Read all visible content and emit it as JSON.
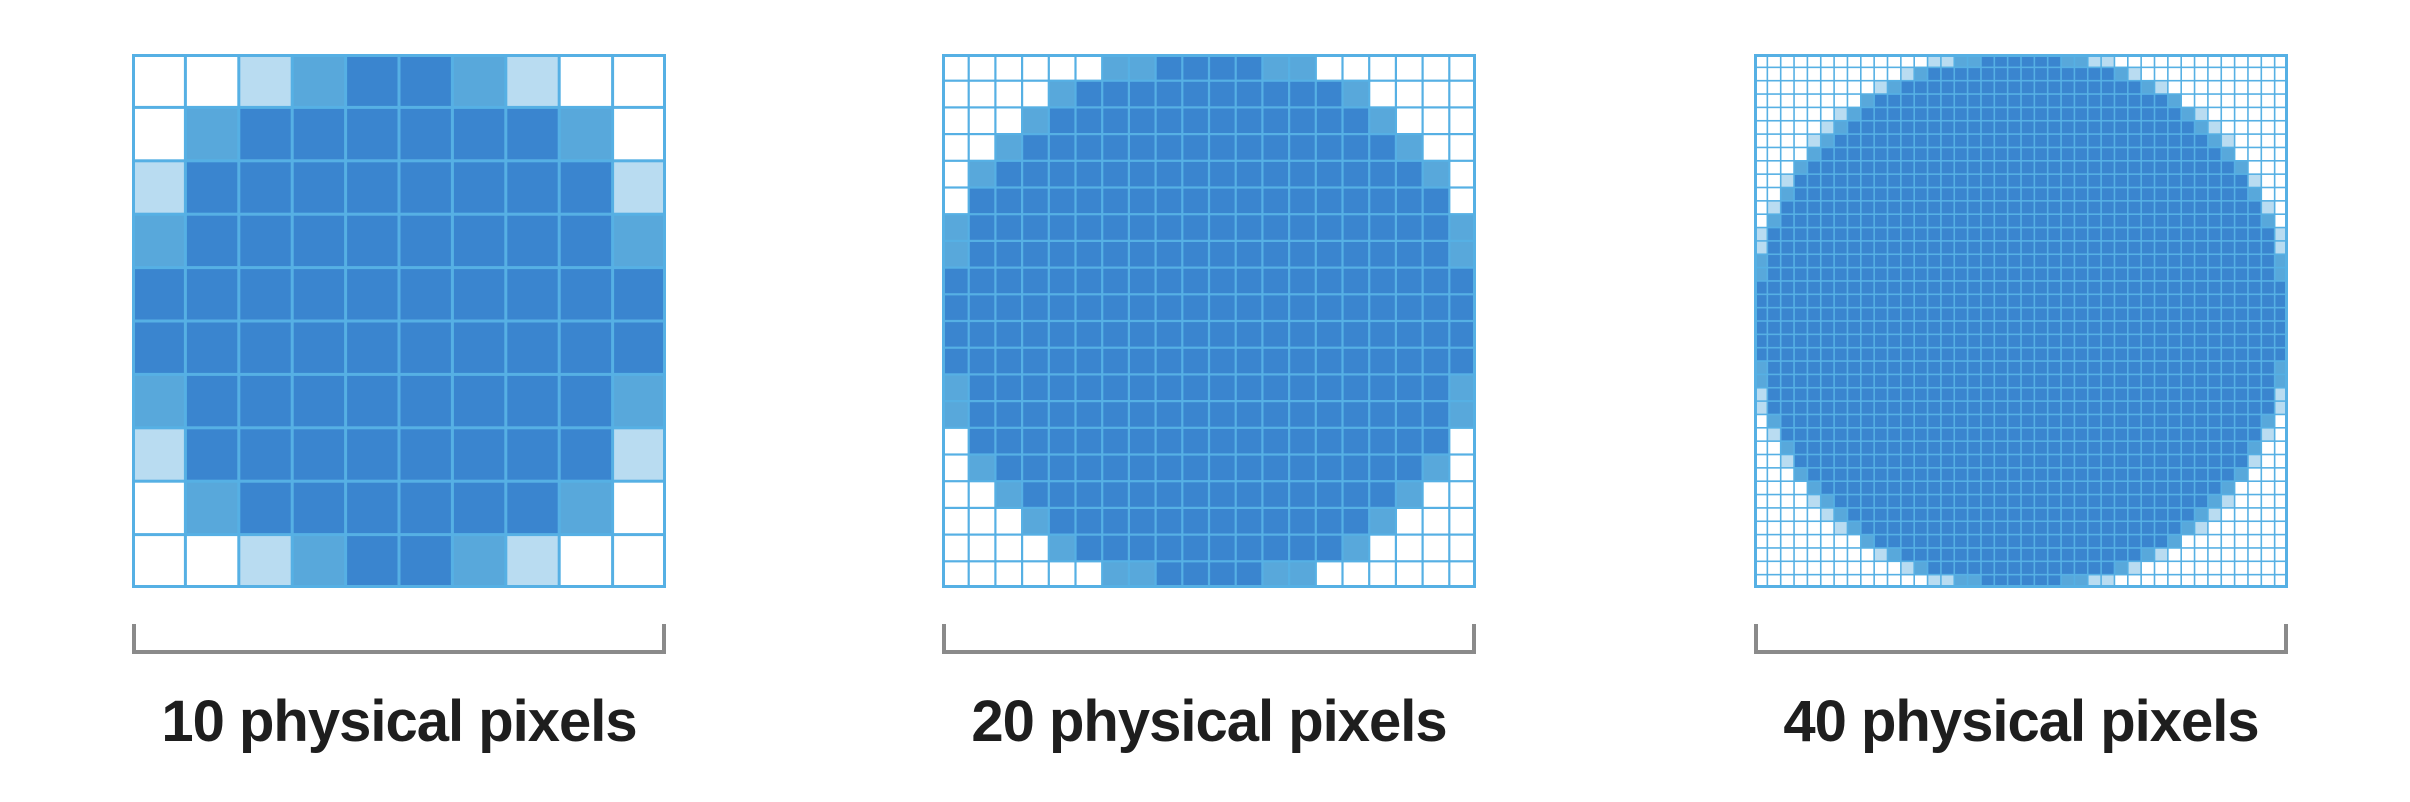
{
  "colors": {
    "pixel_full": "#3a85cf",
    "pixel_mid": "#58a8db",
    "pixel_light": "#b9dcf1",
    "pixel_empty": "#ffffff",
    "grid_line": "#56b0e4",
    "bracket": "#8a8a8a",
    "caption_text": "#1e1e1e"
  },
  "panels": [
    {
      "resolution": 10,
      "caption": "10 physical pixels"
    },
    {
      "resolution": 20,
      "caption": "20 physical pixels"
    },
    {
      "resolution": 40,
      "caption": "40 physical pixels"
    }
  ]
}
